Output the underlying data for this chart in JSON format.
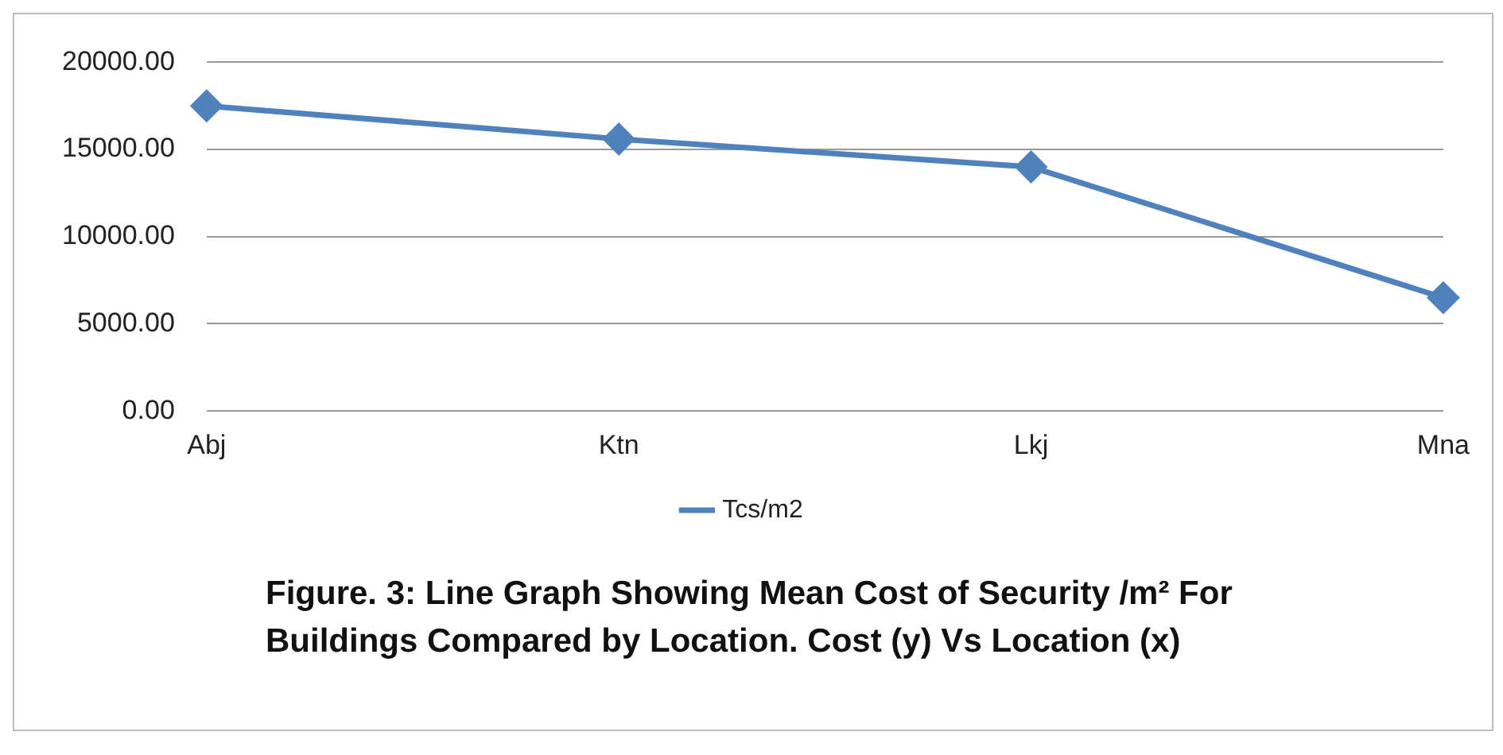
{
  "chart_data": {
    "type": "line",
    "categories": [
      "Abj",
      "Ktn",
      "Lkj",
      "Mna"
    ],
    "series": [
      {
        "name": "Tcs/m2",
        "color": "#4f81bd",
        "values": [
          17500,
          15600,
          14000,
          6500
        ]
      }
    ],
    "ylim": [
      0,
      20000
    ],
    "yticks": [
      {
        "value": 0,
        "label": "0.00"
      },
      {
        "value": 5000,
        "label": "5000.00"
      },
      {
        "value": 10000,
        "label": "10000.00"
      },
      {
        "value": 15000,
        "label": "15000.00"
      },
      {
        "value": 20000,
        "label": "20000.00"
      }
    ],
    "grid": "y",
    "legend": "bottom",
    "marker": "diamond",
    "line_style": "solid",
    "annotations": [
      "Figure. 3: Line Graph Showing Mean Cost of Security /m² For Buildings Compared by Location. Cost (y) Vs Location (x)"
    ]
  }
}
